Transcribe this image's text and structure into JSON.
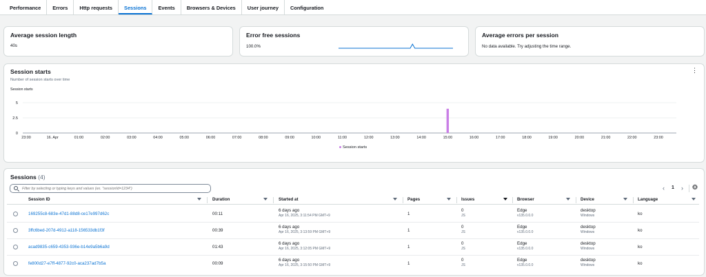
{
  "tabs": [
    {
      "label": "Performance",
      "active": false
    },
    {
      "label": "Errors",
      "active": false
    },
    {
      "label": "Http requests",
      "active": false
    },
    {
      "label": "Sessions",
      "active": true
    },
    {
      "label": "Events",
      "active": false
    },
    {
      "label": "Browsers & Devices",
      "active": false
    },
    {
      "label": "User journey",
      "active": false
    },
    {
      "label": "Configuration",
      "active": false
    }
  ],
  "metrics": {
    "avg_length": {
      "title": "Average session length",
      "value": "40s"
    },
    "error_free": {
      "title": "Error free sessions",
      "value": "100.0%"
    },
    "avg_errors": {
      "title": "Average errors per session",
      "value": "No data available. Try adjusting the time range."
    }
  },
  "session_starts": {
    "title": "Session starts",
    "subtitle": "Number of session starts over time",
    "more_icon": "vertical-ellipsis-icon"
  },
  "chart_data": {
    "type": "bar",
    "ylabel": "Session starts",
    "yticks": [
      "0",
      "2.5",
      "5"
    ],
    "ylim": [
      0,
      5
    ],
    "categories": [
      "23:00",
      "16. Apr",
      "01:00",
      "02:00",
      "03:00",
      "04:00",
      "05:00",
      "06:00",
      "07:00",
      "08:00",
      "09:00",
      "10:00",
      "11:00",
      "12:00",
      "13:00",
      "14:00",
      "15:00",
      "16:00",
      "17:00",
      "18:00",
      "19:00",
      "20:00",
      "21:00",
      "22:00",
      "23:00"
    ],
    "series": [
      {
        "name": "Session starts",
        "color": "#c97ee6",
        "values": [
          0,
          0,
          0,
          0,
          0,
          0,
          0,
          0,
          0,
          0,
          0,
          0,
          0,
          0,
          0,
          0,
          4,
          0,
          0,
          0,
          0,
          0,
          0,
          0,
          0
        ]
      }
    ],
    "grid": true,
    "legend": "bottom-center"
  },
  "sparkline": {
    "color": "#0972d3",
    "values": [
      100,
      100,
      100,
      100,
      100,
      100,
      100,
      100,
      100,
      100,
      100,
      100,
      100,
      100,
      100,
      100,
      100,
      100,
      100,
      100,
      100,
      100,
      100,
      100,
      100,
      100,
      100,
      100,
      100,
      100,
      100,
      100,
      100,
      100,
      100,
      100,
      100,
      100,
      100,
      100,
      100,
      100,
      100,
      100,
      100,
      100,
      100,
      100,
      100,
      100,
      100,
      100,
      100,
      100,
      100,
      100,
      100,
      100,
      100,
      100,
      100,
      100,
      100,
      104,
      108,
      104,
      100,
      100,
      100,
      100,
      100,
      100,
      100,
      100,
      100,
      100,
      100,
      100,
      100,
      100,
      100,
      100,
      100,
      100,
      100,
      100,
      100,
      100,
      100,
      100,
      100,
      100,
      100,
      100,
      100,
      100,
      100,
      100,
      100,
      100
    ]
  },
  "sessions": {
    "title": "Sessions",
    "count": "(4)",
    "filter_placeholder": "Filter by selecting or typing keys and values (ex. \"sessionId=1234\")",
    "page": "1",
    "columns": [
      "Session ID",
      "Duration",
      "Started at",
      "Pages",
      "Issues",
      "Browser",
      "Device",
      "Language"
    ],
    "rows": [
      {
        "id": "169255c8-683e-47d1-88d8-ce17e997d62c",
        "duration": "00:11",
        "started": "6 days ago",
        "started_detail": "Apr 16, 2025, 3:11:54 PM GMT+9",
        "pages": "1",
        "issues": "0",
        "issues_detail": "JS",
        "browser": "Edge",
        "browser_version": "v135.0.0.0",
        "device": "desktop",
        "device_os": "Windows",
        "language": "ko"
      },
      {
        "id": "3ffc6bed-207d-4912-a118-156533db1f3f",
        "duration": "00:39",
        "started": "6 days ago",
        "started_detail": "Apr 16, 2025, 3:13:59 PM GMT+9",
        "pages": "1",
        "issues": "0",
        "issues_detail": "JS",
        "browser": "Edge",
        "browser_version": "v135.0.0.0",
        "device": "desktop",
        "device_os": "Windows",
        "language": "ko"
      },
      {
        "id": "acad9835-c659-4353-936e-b14e9a5b6a9d",
        "duration": "01:43",
        "started": "6 days ago",
        "started_detail": "Apr 16, 2025, 3:12:05 PM GMT+9",
        "pages": "1",
        "issues": "0",
        "issues_detail": "JS",
        "browser": "Edge",
        "browser_version": "v135.0.0.0",
        "device": "desktop",
        "device_os": "Windows",
        "language": "ko"
      },
      {
        "id": "fe800d27-e7ff-4877-92c0-aca237ad7b5a",
        "duration": "00:09",
        "started": "6 days ago",
        "started_detail": "Apr 16, 2025, 3:15:50 PM GMT+9",
        "pages": "1",
        "issues": "0",
        "issues_detail": "JS",
        "browser": "Edge",
        "browser_version": "v135.0.0.0",
        "device": "desktop",
        "device_os": "Windows",
        "language": "ko"
      }
    ]
  }
}
